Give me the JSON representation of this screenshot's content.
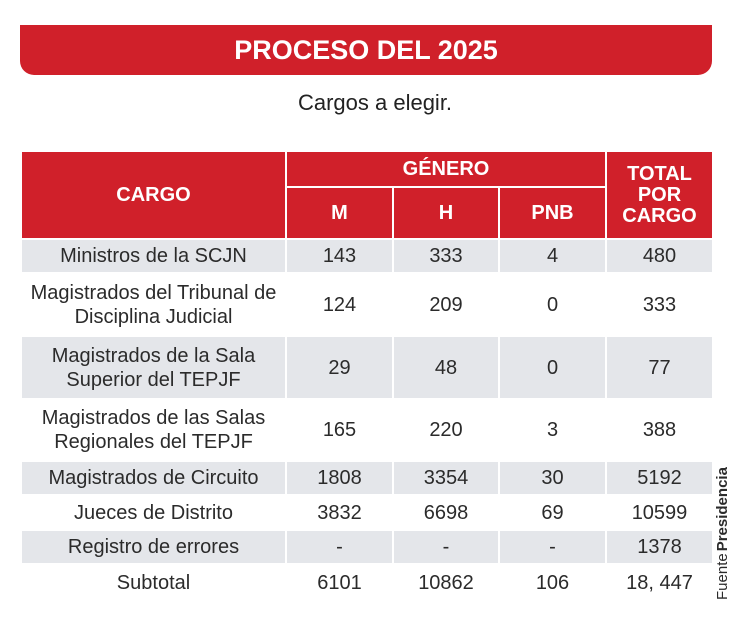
{
  "header": {
    "title": "PROCESO DEL 2025",
    "subtitle": "Cargos a elegir."
  },
  "table": {
    "columns": {
      "cargo": "CARGO",
      "genero": "GÉNERO",
      "m": "M",
      "h": "H",
      "pnb": "PNB",
      "total": "TOTAL POR CARGO"
    },
    "rows": [
      [
        "Ministros de la SCJN",
        143,
        333,
        4,
        480
      ],
      [
        "Magistrados del Tribunal de Disciplina Judicial",
        124,
        209,
        0,
        333
      ],
      [
        "Magistrados de la Sala Superior del TEPJF",
        29,
        48,
        0,
        77
      ],
      [
        "Magistrados de las Salas Regionales del TEPJF",
        165,
        220,
        3,
        388
      ],
      [
        "Magistrados de Circuito",
        1808,
        3354,
        30,
        5192
      ],
      [
        "Jueces de Distrito",
        3832,
        6698,
        69,
        10599
      ],
      [
        "Registro de errores",
        "-",
        "-",
        "-",
        1378
      ],
      [
        "Subtotal",
        6101,
        10862,
        106,
        "18, 447"
      ]
    ]
  },
  "source": {
    "label": "Fuente",
    "name": "Presidencia"
  }
}
